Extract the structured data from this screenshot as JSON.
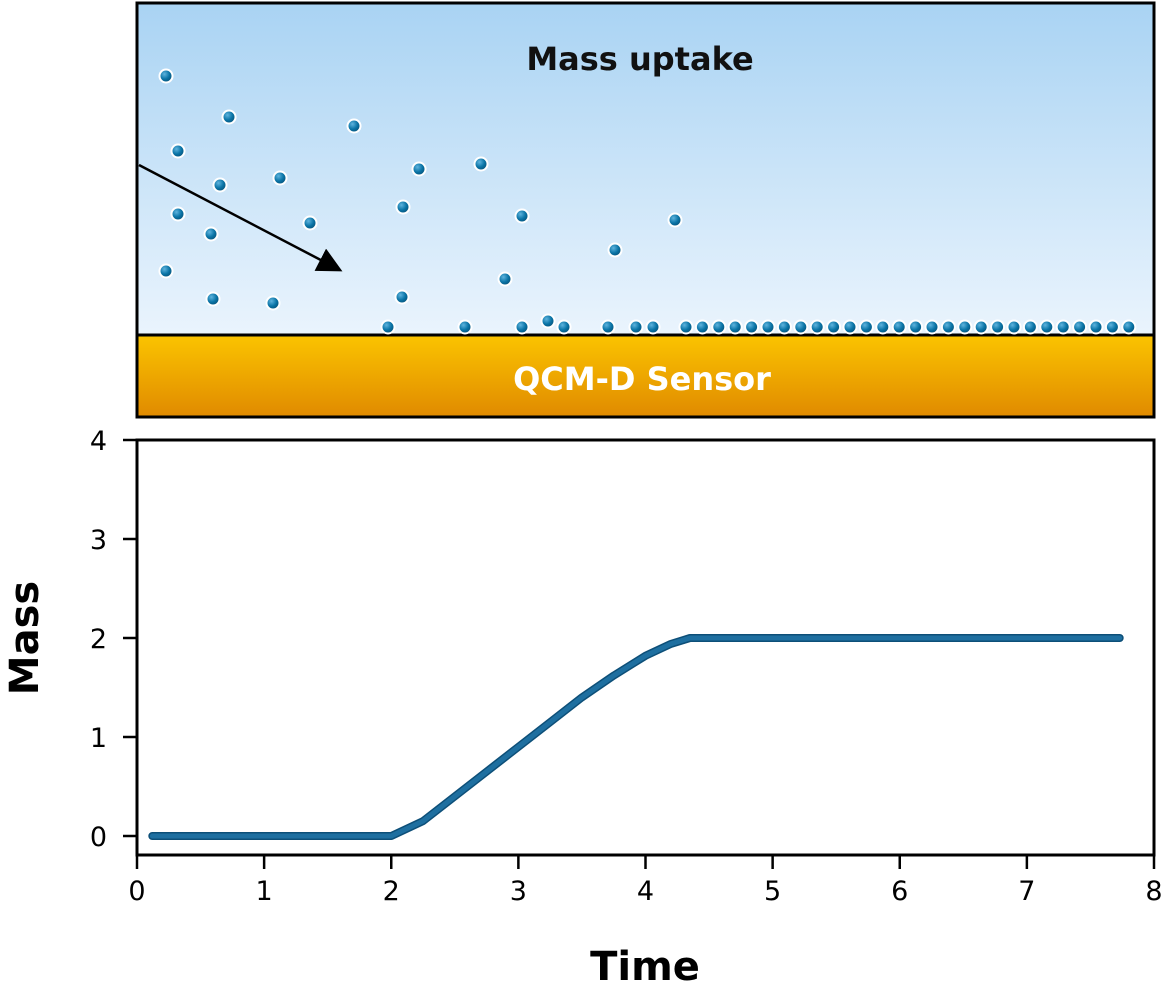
{
  "illustration": {
    "title": "Mass uptake",
    "sensor_label": "QCM-D Sensor",
    "colors": {
      "solution_top": "#a9d3f3",
      "solution_bottom": "#eaf4fd",
      "sensor_top": "#fbc400",
      "sensor_bottom": "#e08a00",
      "particle": "#0a74a6",
      "sensor_text": "#ffffff"
    }
  },
  "chart_data": {
    "type": "line",
    "xlabel": "Time",
    "ylabel": "Mass",
    "xlim": [
      0,
      8
    ],
    "ylim": [
      0,
      4
    ],
    "x_ticks": [
      0,
      1,
      2,
      3,
      4,
      5,
      6,
      7,
      8
    ],
    "y_ticks": [
      0,
      1,
      2,
      3,
      4
    ],
    "grid": false,
    "series": [
      {
        "color": "#1e6fa0",
        "x": [
          0.12,
          0.5,
          1.0,
          1.5,
          2.0,
          2.25,
          2.5,
          2.75,
          3.0,
          3.25,
          3.5,
          3.75,
          4.0,
          4.2,
          4.35,
          4.6,
          5.0,
          5.5,
          6.0,
          6.5,
          7.0,
          7.5,
          7.73
        ],
        "y": [
          0.0,
          0.0,
          0.0,
          0.0,
          0.0,
          0.15,
          0.4,
          0.65,
          0.9,
          1.15,
          1.4,
          1.62,
          1.82,
          1.94,
          2.0,
          2.0,
          2.0,
          2.0,
          2.0,
          2.0,
          2.0,
          2.0,
          2.0
        ]
      }
    ]
  }
}
